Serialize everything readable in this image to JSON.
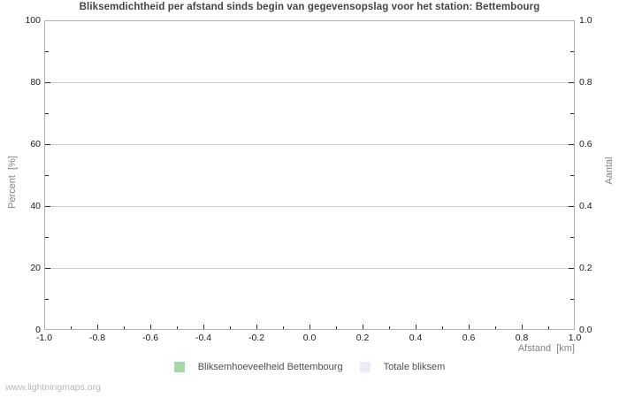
{
  "title": "Bliksemdichtheid per afstand sinds begin van gegevensopslag voor het station: Bettembourg",
  "watermark": "www.lightningmaps.org",
  "chart_data": {
    "type": "bar",
    "title": "Bliksemdichtheid per afstand sinds begin van gegevensopslag voor het station: Bettembourg",
    "grid": true,
    "plotted_points": "none - chart area is empty, no data recorded",
    "x_axis": {
      "label": "Afstand  [km]",
      "min": -1.0,
      "max": 1.0,
      "major_ticks": [
        -1.0,
        -0.8,
        -0.6,
        -0.4,
        -0.2,
        0.0,
        0.2,
        0.4,
        0.6,
        0.8,
        1.0
      ],
      "major_tick_labels": [
        "-1.0",
        "-0.8",
        "-0.6",
        "-0.4",
        "-0.2",
        "0.0",
        "0.2",
        "0.4",
        "0.6",
        "0.8",
        "1.0"
      ],
      "minor_ticks": [
        -0.9,
        -0.7,
        -0.5,
        -0.3,
        -0.1,
        0.1,
        0.3,
        0.5,
        0.7,
        0.9
      ]
    },
    "y_axis_left": {
      "label": "Percent  [%]",
      "min": 0,
      "max": 100,
      "major_ticks": [
        0,
        20,
        40,
        60,
        80,
        100
      ],
      "major_tick_labels": [
        "0",
        "20",
        "40",
        "60",
        "80",
        "100"
      ],
      "minor_ticks": [
        10,
        30,
        50,
        70,
        90
      ]
    },
    "y_axis_right": {
      "label": "Aantal",
      "min": 0.0,
      "max": 1.0,
      "major_ticks": [
        0.0,
        0.2,
        0.4,
        0.6,
        0.8,
        1.0
      ],
      "major_tick_labels": [
        "0.0",
        "0.2",
        "0.4",
        "0.6",
        "0.8",
        "1.0"
      ],
      "minor_ticks": [
        0.1,
        0.3,
        0.5,
        0.7,
        0.9
      ]
    },
    "legend": [
      {
        "label": "Bliksemhoeveelheid Bettembourg",
        "color": "#a5d8a5"
      },
      {
        "label": "Totale bliksem",
        "color": "#eaecf8"
      }
    ],
    "series": [
      {
        "name": "Bliksemhoeveelheid Bettembourg",
        "values": []
      },
      {
        "name": "Totale bliksem",
        "values": []
      }
    ]
  },
  "colors": {
    "background": "#ffffff",
    "title_text": "#454545",
    "axis_border": "#b0b0b0",
    "gridline": "#cccccc",
    "tick": "#2a2a2a",
    "tick_label": "#1a1a1a",
    "axis_label": "#828282",
    "legend_text": "#4d4d4d",
    "watermark": "#b8b8b8",
    "series_station": "#a5d8a5",
    "series_total": "#eaecf8"
  }
}
